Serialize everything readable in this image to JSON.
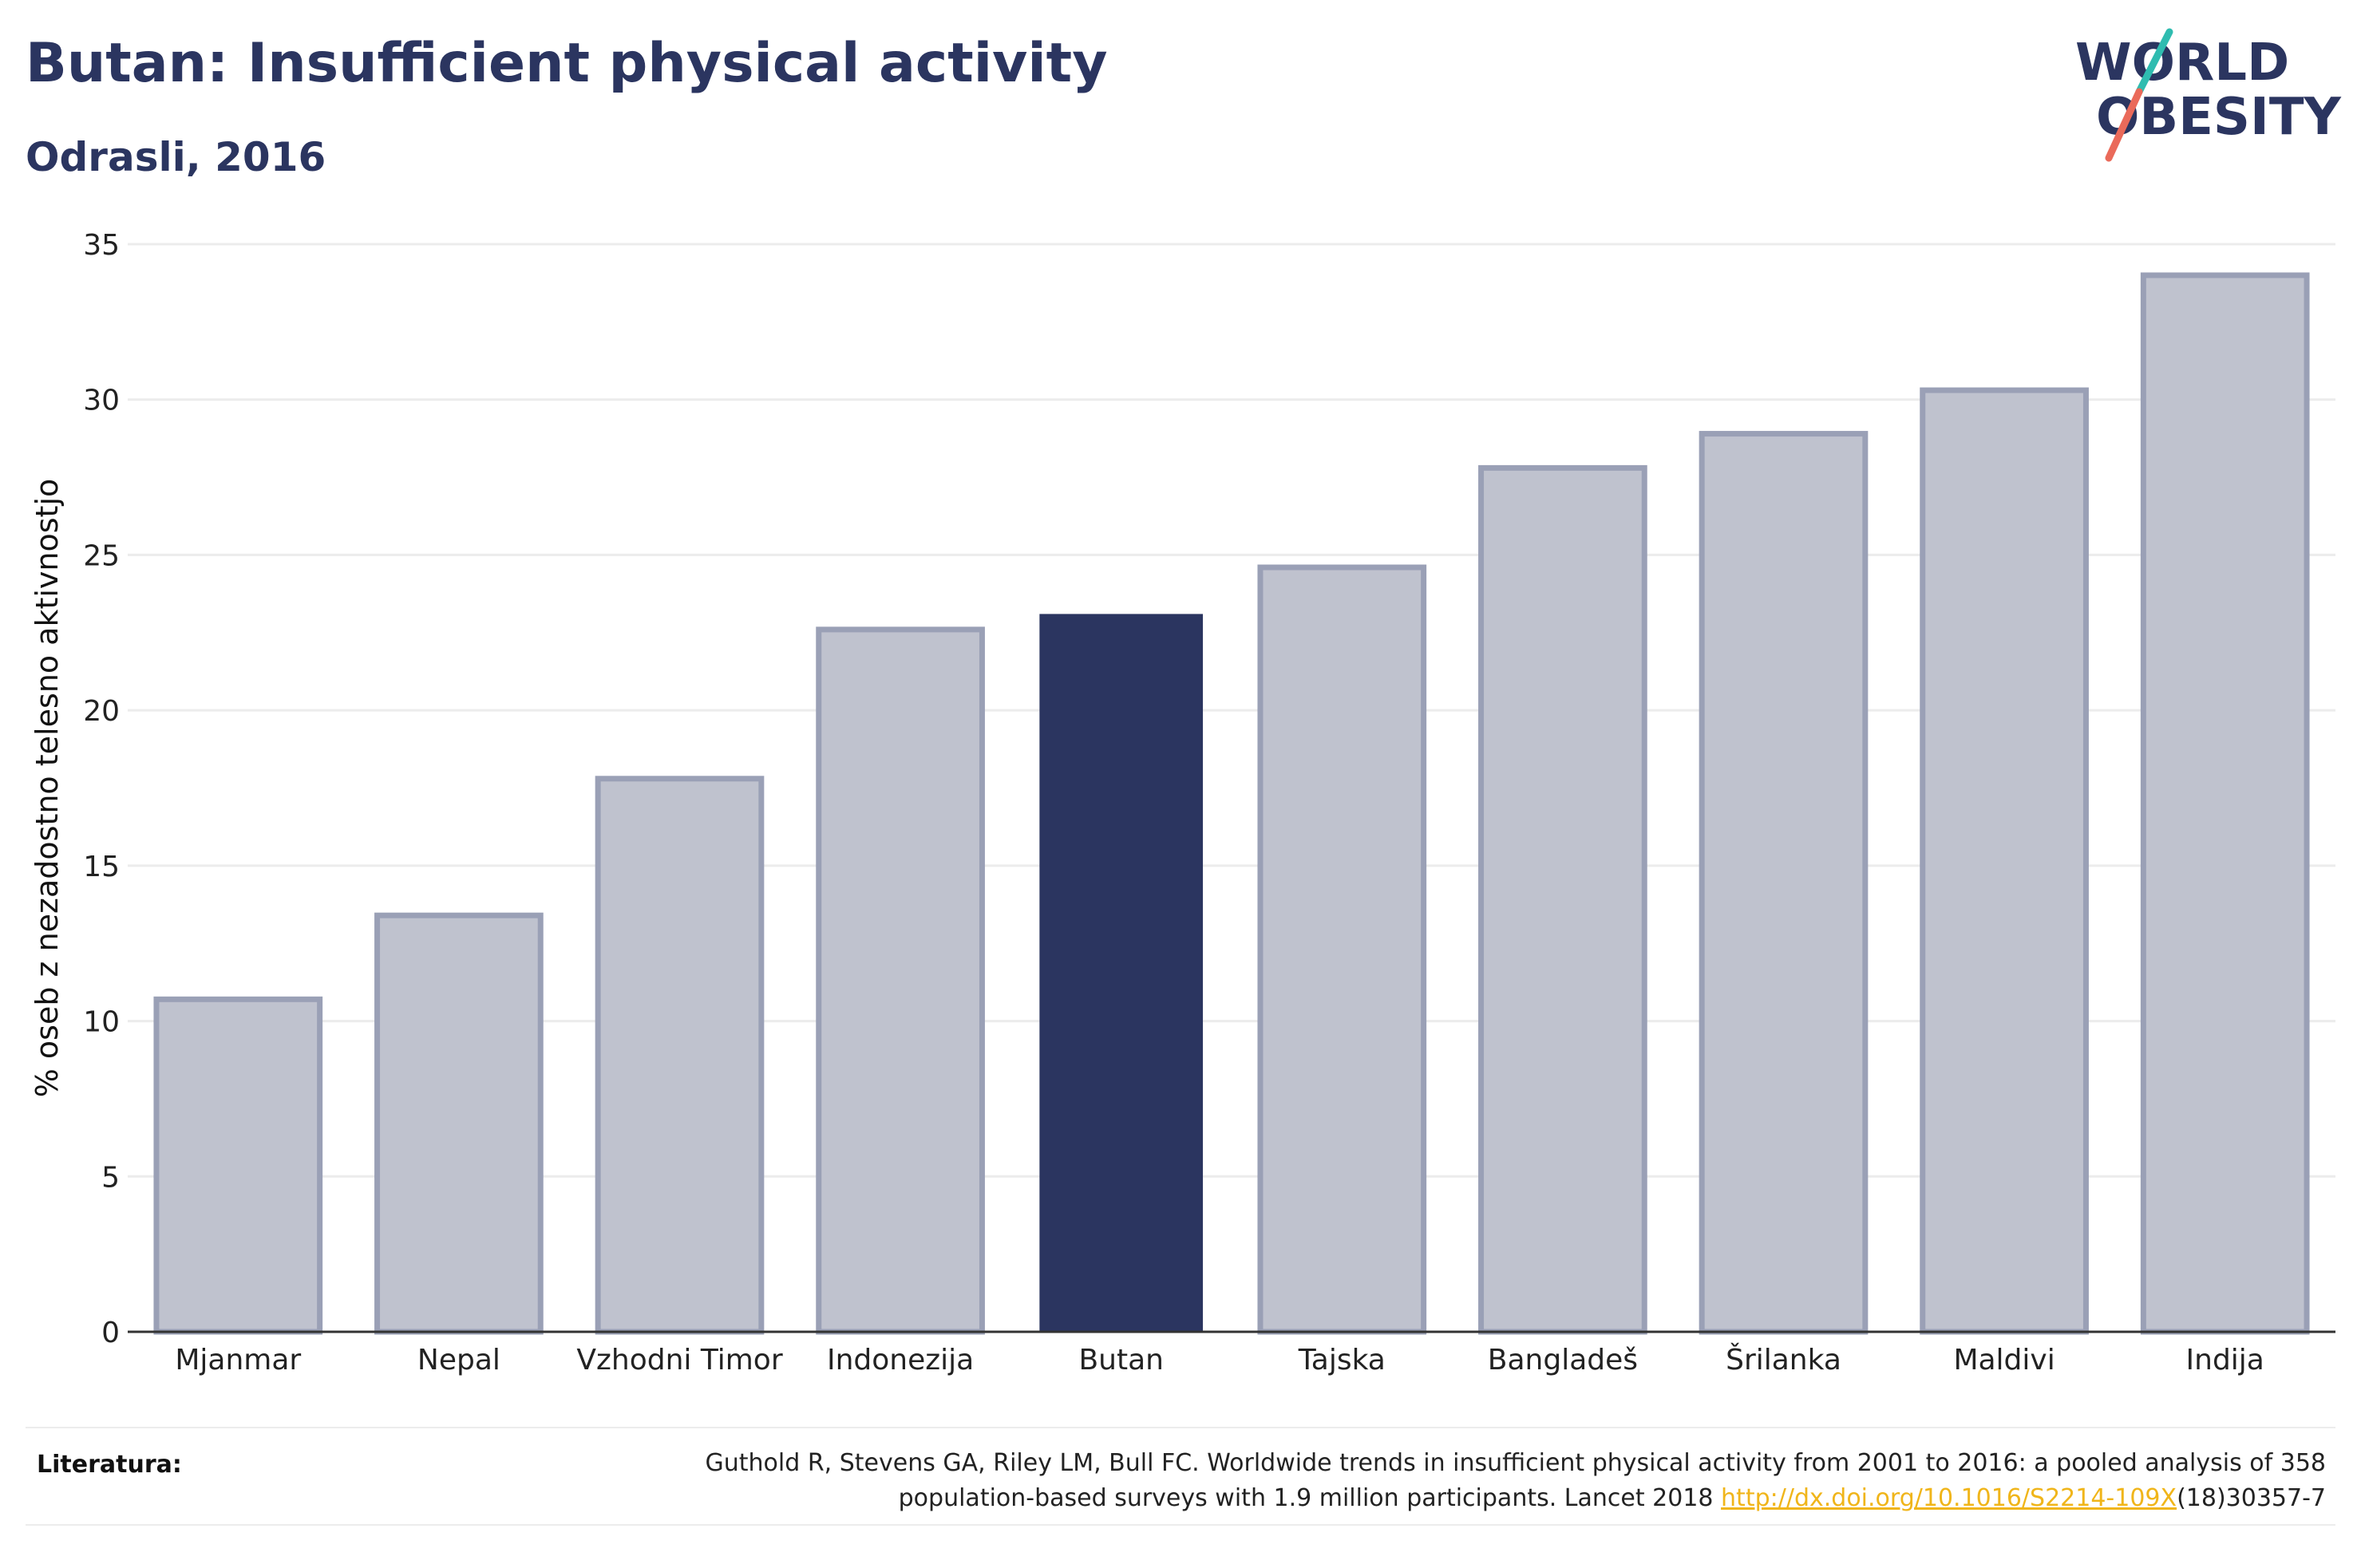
{
  "header": {
    "title": "Butan: Insufficient physical activity",
    "subtitle": "Odrasli, 2016"
  },
  "logo": {
    "line1": "WORLD",
    "line2": "OBESITY",
    "accent_teal": "#2fbcb0",
    "accent_coral": "#ea6a5a",
    "text_color": "#2b3560"
  },
  "chart_data": {
    "type": "bar",
    "ylabel": "% oseb z nezadostno telesno aktivnostjo",
    "xlabel": "",
    "ylim": [
      0,
      35
    ],
    "yticks": [
      0,
      5,
      10,
      15,
      20,
      25,
      30,
      35
    ],
    "categories": [
      "Mjanmar",
      "Nepal",
      "Vzhodni Timor",
      "Indonezija",
      "Butan",
      "Tajska",
      "Bangladeš",
      "Šrilanka",
      "Maldivi",
      "Indija"
    ],
    "values": [
      10.7,
      13.4,
      17.8,
      22.6,
      23.1,
      24.6,
      27.8,
      28.9,
      30.3,
      34.0
    ],
    "highlight": "Butan",
    "grid": true,
    "colors": {
      "bar": "#bfc2ce",
      "bar_stroke": "#9aa0b6",
      "highlight": "#2b3560",
      "grid": "#ececec",
      "axis": "#333333"
    }
  },
  "footer": {
    "label": "Literatura:",
    "ref_line1": "Guthold R, Stevens GA, Riley LM, Bull FC. Worldwide trends in insufficient physical activity from 2001 to 2016: a pooled analysis of 358",
    "ref_line2_pre": "population-based surveys with 1.9 million participants. Lancet 2018 ",
    "ref_link": "http://dx.doi.org/10.1016/S2214-109X",
    "ref_line2_post": "(18)30357-7"
  }
}
